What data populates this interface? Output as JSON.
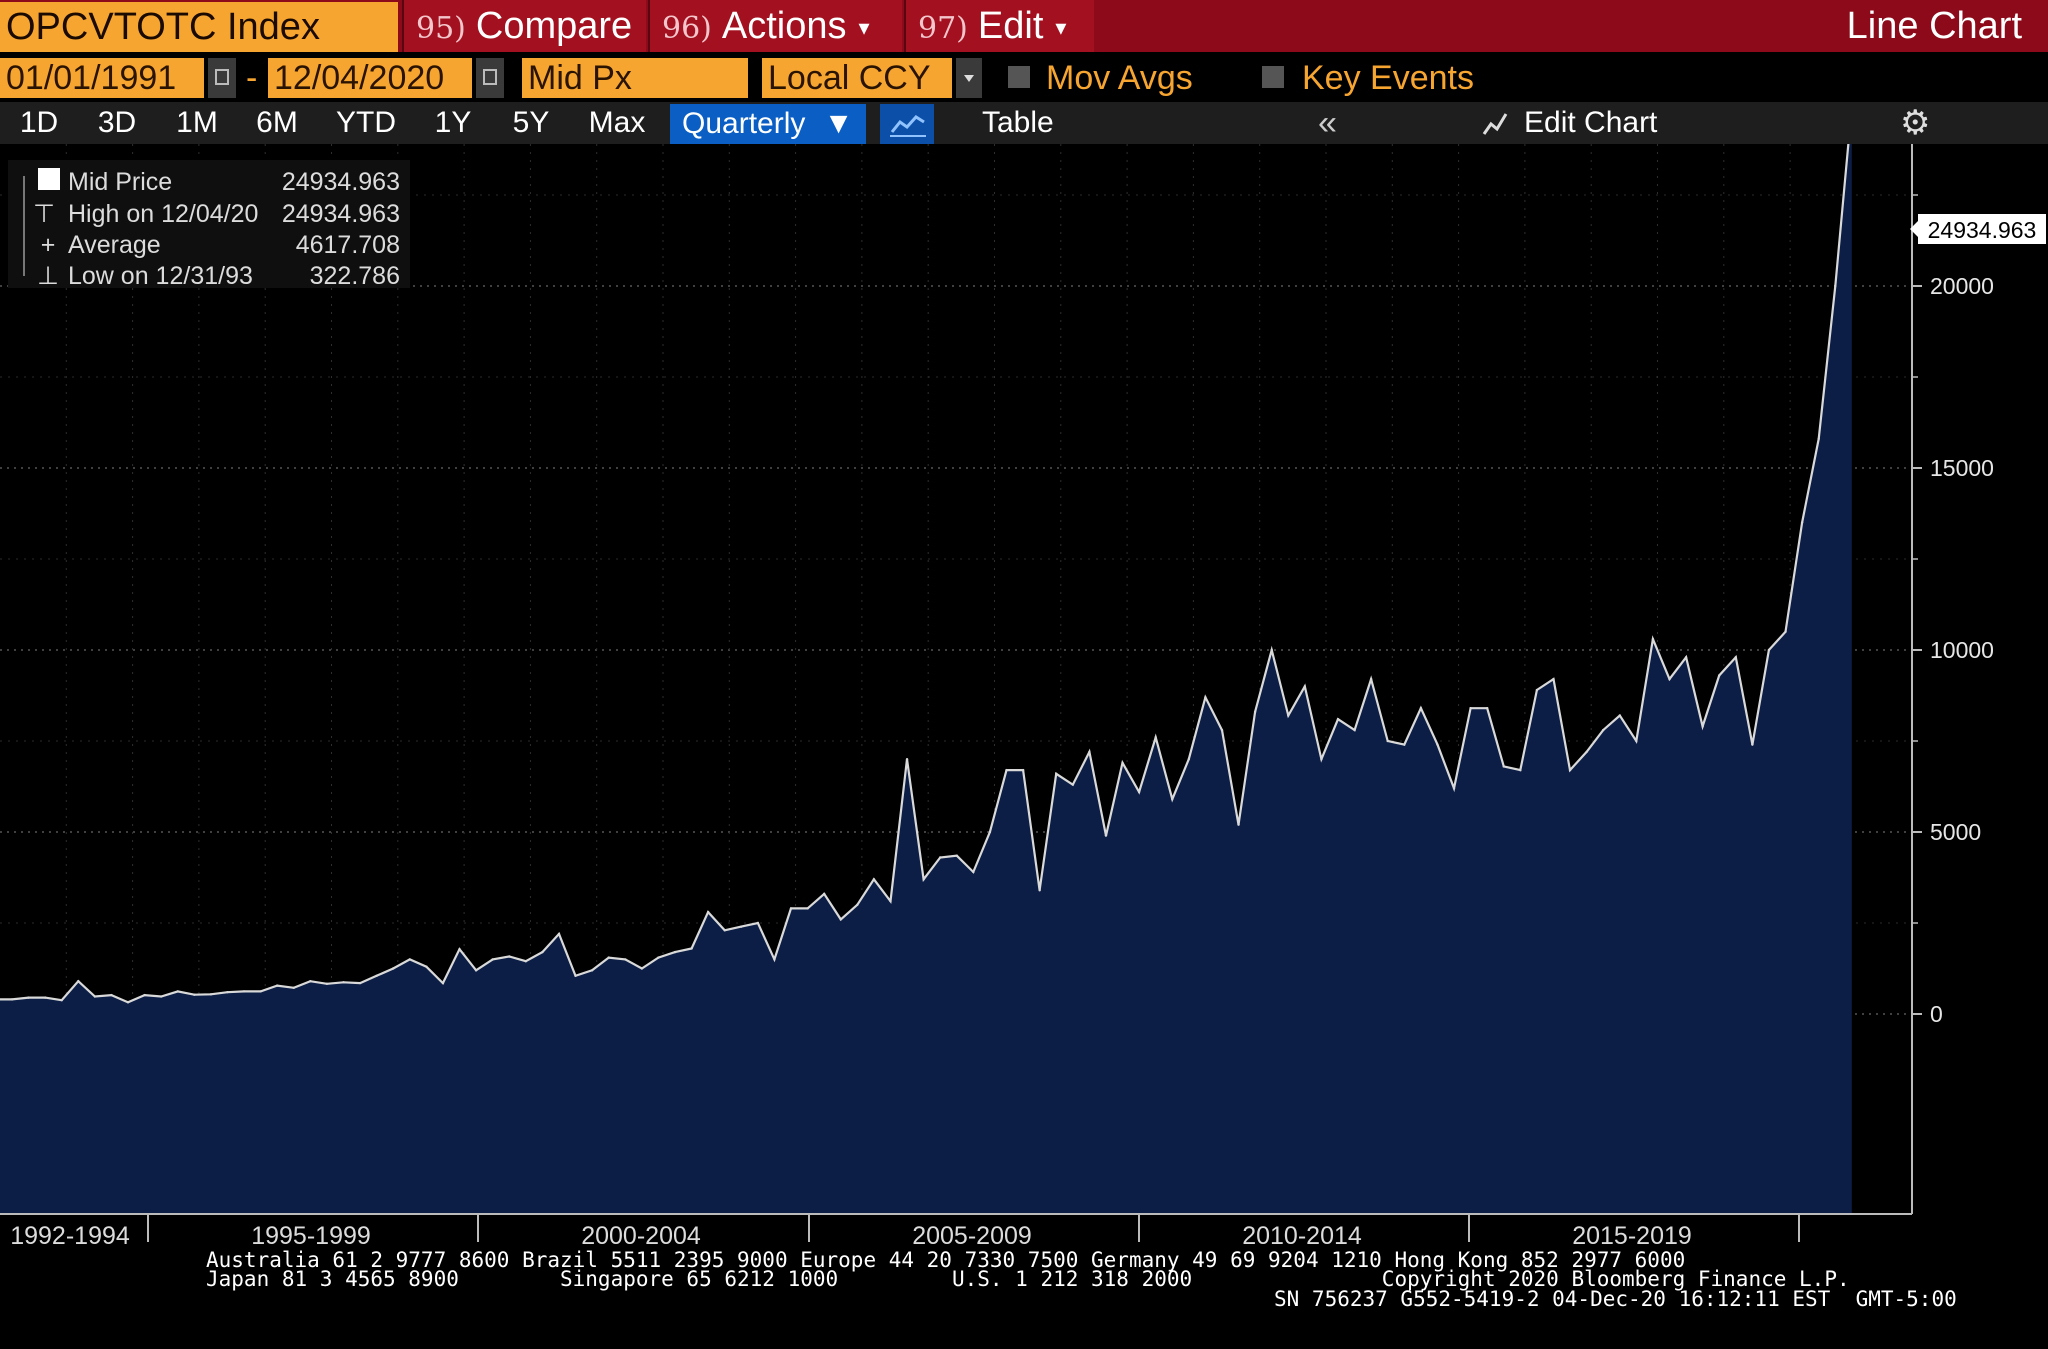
{
  "header": {
    "ticker": "OPCVTOTC Index",
    "compare": {
      "num": "95)",
      "label": "Compare"
    },
    "actions": {
      "num": "96)",
      "label": "Actions"
    },
    "edit": {
      "num": "97)",
      "label": "Edit"
    },
    "chart_type_label": "Line Chart"
  },
  "controls": {
    "start_date": "01/01/1991",
    "separator": "-",
    "end_date": "12/04/2020",
    "field": "Mid Px",
    "currency": "Local CCY",
    "mov_avgs": "Mov Avgs",
    "key_events": "Key Events"
  },
  "ranges": [
    "1D",
    "3D",
    "1M",
    "6M",
    "YTD",
    "1Y",
    "5Y",
    "Max"
  ],
  "periodicity": "Quarterly",
  "table_label": "Table",
  "collapse_glyph": "«",
  "edit_chart_label": "Edit Chart",
  "legend": {
    "series": {
      "label": "Mid Price",
      "value": "24934.963"
    },
    "high": {
      "label": "High on 12/04/20",
      "value": "24934.963"
    },
    "average": {
      "label": "Average",
      "value": "4617.708"
    },
    "low": {
      "label": "Low on 12/31/93",
      "value": "322.786"
    }
  },
  "last_value_label": "24934.963",
  "footer": {
    "line1": "Australia 61 2 9777 8600 Brazil 5511 2395 9000 Europe 44 20 7330 7500 Germany 49 69 9204 1210 Hong Kong 852 2977 6000",
    "line2": "Japan 81 3 4565 8900        Singapore 65 6212 1000         U.S. 1 212 318 2000               Copyright 2020 Bloomberg Finance L.P.",
    "line3": "SN 756237 G552-5419-2 04-Dec-20 16:12:11 EST  GMT-5:00"
  },
  "colors": {
    "title_bar": "#8c0a19",
    "orange": "#f7a531",
    "line": "#d9d9d9",
    "area_fill": "#0c1e45",
    "blue_button": "#0b5fc4"
  },
  "chart_data": {
    "type": "area",
    "frequency": "quarterly",
    "start": "1991-Q1",
    "end": "2020-Q4",
    "x_tick_labels": [
      "1992-1994",
      "1995-1999",
      "2000-2004",
      "2005-2009",
      "2010-2014",
      "2015-2019"
    ],
    "y_ticks": [
      0,
      5000,
      10000,
      15000,
      20000
    ],
    "ylim": [
      -2000,
      26500
    ],
    "grid": true,
    "y_axis_side": "right",
    "legend_position": "top-left",
    "series": [
      {
        "name": "Mid Price",
        "values": [
          400,
          450,
          450,
          380,
          900,
          480,
          520,
          322.786,
          520,
          480,
          620,
          530,
          540,
          600,
          620,
          620,
          780,
          720,
          900,
          830,
          870,
          850,
          1050,
          1250,
          1500,
          1300,
          850,
          1780,
          1200,
          1500,
          1580,
          1450,
          1700,
          2200,
          1050,
          1200,
          1550,
          1500,
          1250,
          1550,
          1700,
          1800,
          2800,
          2300,
          2400,
          2500,
          1500,
          2900,
          2900,
          3300,
          2600,
          3000,
          3700,
          3100,
          7000,
          3700,
          4300,
          4350,
          3900,
          5000,
          6700,
          6700,
          3400,
          6600,
          6300,
          7200,
          4900,
          6900,
          6100,
          7600,
          5900,
          7000,
          8700,
          7800,
          5200,
          8300,
          10000,
          8200,
          9000,
          7000,
          8100,
          7800,
          9200,
          7500,
          7400,
          8400,
          7400,
          6200,
          8400,
          8400,
          6800,
          6700,
          8900,
          9200,
          6700,
          7200,
          7800,
          8200,
          7500,
          10300,
          9200,
          9800,
          7900,
          9300,
          9800,
          7400,
          10000,
          10500,
          13500,
          15800,
          20000,
          24934.963
        ]
      }
    ]
  }
}
